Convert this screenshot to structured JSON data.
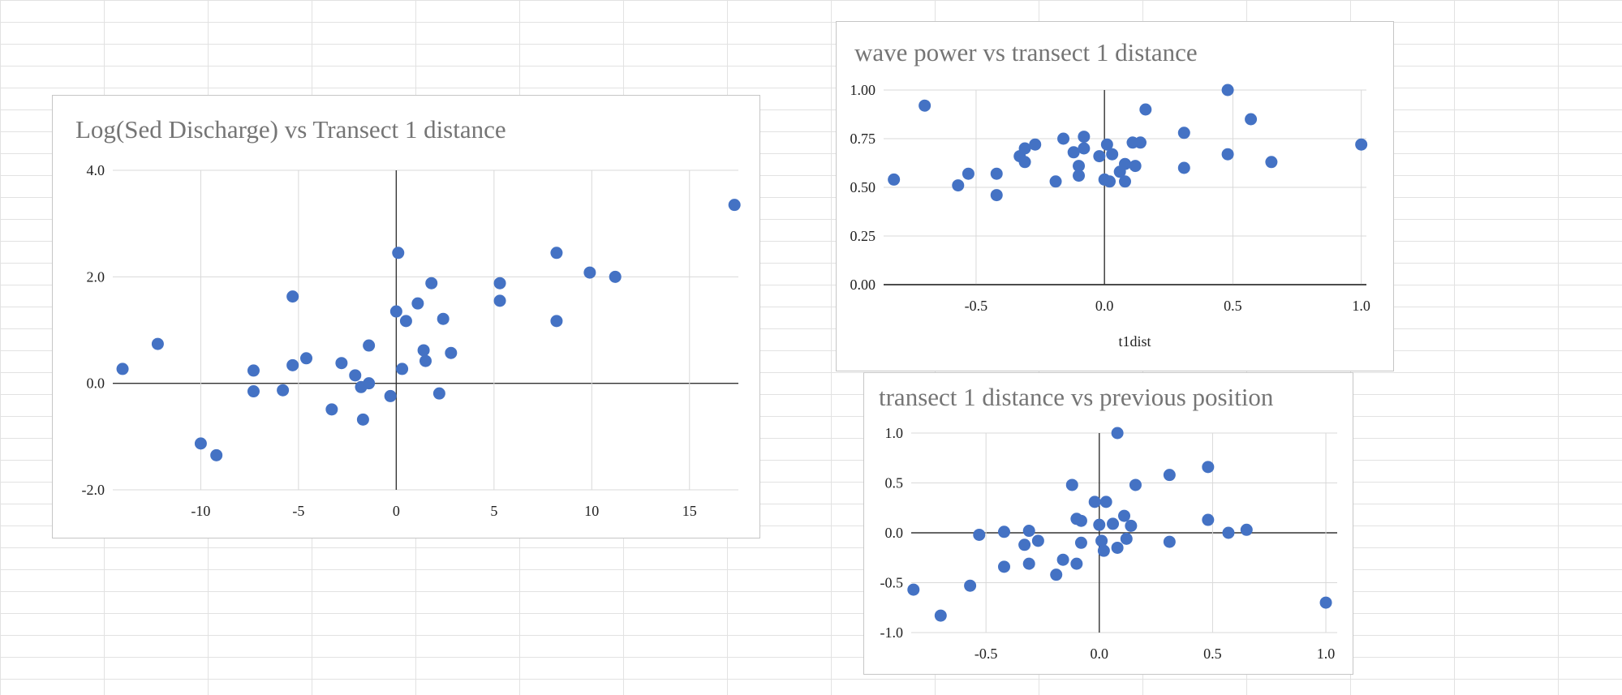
{
  "chart_data": [
    {
      "type": "scatter",
      "title": "Log(Sed Discharge) vs Transect 1 distance",
      "xlabel": "",
      "ylabel": "",
      "xlim": [
        -14.5,
        17.5
      ],
      "ylim": [
        -2.0,
        4.0
      ],
      "x_ticks": [
        -10,
        -5,
        0,
        5,
        10,
        15
      ],
      "y_ticks": [
        -2.0,
        0.0,
        2.0,
        4.0
      ],
      "x_tick_labels": [
        "-10",
        "-5",
        "0",
        "5",
        "10",
        "15"
      ],
      "y_tick_labels": [
        "-2.0",
        "0.0",
        "2.0",
        "4.0"
      ],
      "grid": "vertical-and-horizontal",
      "color": "#4472c4",
      "points": [
        [
          -14.0,
          0.27
        ],
        [
          -12.2,
          0.74
        ],
        [
          -10.0,
          -1.13
        ],
        [
          -9.2,
          -1.35
        ],
        [
          -7.3,
          0.24
        ],
        [
          -7.3,
          -0.15
        ],
        [
          -5.8,
          -0.13
        ],
        [
          -5.3,
          0.34
        ],
        [
          -5.3,
          1.63
        ],
        [
          -4.6,
          0.47
        ],
        [
          -3.3,
          -0.49
        ],
        [
          -2.8,
          0.38
        ],
        [
          -2.1,
          0.15
        ],
        [
          -1.8,
          -0.07
        ],
        [
          -1.7,
          -0.68
        ],
        [
          -1.4,
          0.71
        ],
        [
          -1.4,
          0.0
        ],
        [
          -0.3,
          -0.24
        ],
        [
          0.0,
          1.35
        ],
        [
          0.1,
          2.45
        ],
        [
          0.3,
          0.27
        ],
        [
          0.5,
          1.17
        ],
        [
          1.1,
          1.5
        ],
        [
          1.4,
          0.62
        ],
        [
          1.5,
          0.42
        ],
        [
          1.8,
          1.88
        ],
        [
          2.2,
          -0.19
        ],
        [
          2.4,
          1.21
        ],
        [
          2.8,
          0.57
        ],
        [
          5.3,
          1.88
        ],
        [
          5.3,
          1.55
        ],
        [
          8.2,
          2.45
        ],
        [
          8.2,
          1.17
        ],
        [
          9.9,
          2.08
        ],
        [
          11.2,
          2.0
        ],
        [
          17.3,
          3.35
        ]
      ]
    },
    {
      "type": "scatter",
      "title": "wave power vs transect 1 distance",
      "xlabel": "t1dist",
      "ylabel": "",
      "xlim": [
        -0.86,
        1.02
      ],
      "ylim": [
        0.0,
        1.0
      ],
      "x_ticks": [
        -0.5,
        0.0,
        0.5,
        1.0
      ],
      "y_ticks": [
        0.0,
        0.25,
        0.5,
        0.75,
        1.0
      ],
      "x_tick_labels": [
        "-0.5",
        "0.0",
        "0.5",
        "1.0"
      ],
      "y_tick_labels": [
        "0.00",
        "0.25",
        "0.50",
        "0.75",
        "1.00"
      ],
      "grid": "vertical-and-horizontal",
      "color": "#4472c4",
      "points": [
        [
          -0.82,
          0.54
        ],
        [
          -0.7,
          0.92
        ],
        [
          -0.57,
          0.51
        ],
        [
          -0.53,
          0.57
        ],
        [
          -0.42,
          0.57
        ],
        [
          -0.42,
          0.46
        ],
        [
          -0.33,
          0.66
        ],
        [
          -0.31,
          0.7
        ],
        [
          -0.31,
          0.63
        ],
        [
          -0.27,
          0.72
        ],
        [
          -0.19,
          0.53
        ],
        [
          -0.16,
          0.75
        ],
        [
          -0.12,
          0.68
        ],
        [
          -0.1,
          0.61
        ],
        [
          -0.1,
          0.56
        ],
        [
          -0.08,
          0.76
        ],
        [
          -0.08,
          0.7
        ],
        [
          -0.02,
          0.66
        ],
        [
          0.0,
          0.54
        ],
        [
          0.01,
          0.72
        ],
        [
          0.02,
          0.53
        ],
        [
          0.03,
          0.67
        ],
        [
          0.06,
          0.58
        ],
        [
          0.08,
          0.62
        ],
        [
          0.08,
          0.53
        ],
        [
          0.11,
          0.73
        ],
        [
          0.12,
          0.61
        ],
        [
          0.14,
          0.73
        ],
        [
          0.16,
          0.9
        ],
        [
          0.31,
          0.78
        ],
        [
          0.31,
          0.6
        ],
        [
          0.48,
          1.0
        ],
        [
          0.48,
          0.67
        ],
        [
          0.57,
          0.85
        ],
        [
          0.65,
          0.63
        ],
        [
          1.0,
          0.72
        ]
      ]
    },
    {
      "type": "scatter",
      "title": "transect 1 distance vs previous position",
      "xlabel": "",
      "ylabel": "",
      "xlim": [
        -0.83,
        1.05
      ],
      "ylim": [
        -1.0,
        1.0
      ],
      "x_ticks": [
        -0.5,
        0.0,
        0.5,
        1.0
      ],
      "y_ticks": [
        -1.0,
        -0.5,
        0.0,
        0.5,
        1.0
      ],
      "x_tick_labels": [
        "-0.5",
        "0.0",
        "0.5",
        "1.0"
      ],
      "y_tick_labels": [
        "-1.0",
        "-0.5",
        "0.0",
        "0.5",
        "1.0"
      ],
      "grid": "vertical-and-horizontal",
      "color": "#4472c4",
      "points": [
        [
          -0.82,
          -0.57
        ],
        [
          -0.7,
          -0.83
        ],
        [
          -0.57,
          -0.53
        ],
        [
          -0.53,
          -0.02
        ],
        [
          -0.42,
          0.01
        ],
        [
          -0.42,
          -0.34
        ],
        [
          -0.33,
          -0.12
        ],
        [
          -0.31,
          0.02
        ],
        [
          -0.31,
          -0.31
        ],
        [
          -0.27,
          -0.08
        ],
        [
          -0.19,
          -0.42
        ],
        [
          -0.16,
          -0.27
        ],
        [
          -0.12,
          0.48
        ],
        [
          -0.1,
          0.14
        ],
        [
          -0.1,
          -0.31
        ],
        [
          -0.08,
          0.12
        ],
        [
          -0.08,
          -0.1
        ],
        [
          -0.02,
          0.31
        ],
        [
          0.0,
          0.08
        ],
        [
          0.01,
          -0.08
        ],
        [
          0.02,
          -0.18
        ],
        [
          0.03,
          0.31
        ],
        [
          0.06,
          0.09
        ],
        [
          0.08,
          1.0
        ],
        [
          0.08,
          -0.15
        ],
        [
          0.11,
          0.17
        ],
        [
          0.12,
          -0.06
        ],
        [
          0.14,
          0.07
        ],
        [
          0.16,
          0.48
        ],
        [
          0.31,
          0.58
        ],
        [
          0.31,
          -0.09
        ],
        [
          0.48,
          0.66
        ],
        [
          0.48,
          0.13
        ],
        [
          0.57,
          0.0
        ],
        [
          0.65,
          0.03
        ],
        [
          1.0,
          -0.7
        ]
      ]
    }
  ]
}
